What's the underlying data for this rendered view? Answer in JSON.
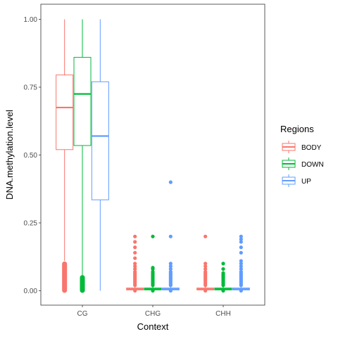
{
  "chart_data": {
    "type": "boxplot",
    "xlabel": "Context",
    "ylabel": "DNA.methylation.level",
    "categories": [
      "CG",
      "CHG",
      "CHH"
    ],
    "ylim": [
      0,
      1
    ],
    "yticks": [
      0.0,
      0.25,
      0.5,
      0.75,
      1.0
    ],
    "ytick_labels": [
      "0.00",
      "0.25",
      "0.50",
      "0.75",
      "1.00"
    ],
    "grid": false,
    "legend": {
      "title": "Regions",
      "placement": "right",
      "entries": [
        "BODY",
        "DOWN",
        "UP"
      ]
    },
    "series": [
      {
        "name": "BODY",
        "color": "#F8766D",
        "boxes": [
          {
            "category": "CG",
            "q1": 0.52,
            "median": 0.675,
            "q3": 0.795,
            "whisker_low": 0.11,
            "whisker_high": 1.0,
            "outliers_band": [
              0.0,
              0.1
            ]
          },
          {
            "category": "CHG",
            "q1": 0.003,
            "median": 0.006,
            "q3": 0.01,
            "whisker_low": 0.0,
            "whisker_high": 0.02,
            "outliers": [
              0.0,
              0.02,
              0.025,
              0.03,
              0.035,
              0.04,
              0.045,
              0.05,
              0.055,
              0.06,
              0.065,
              0.07,
              0.08,
              0.09,
              0.1,
              0.12,
              0.14,
              0.16,
              0.18,
              0.2
            ]
          },
          {
            "category": "CHH",
            "q1": 0.003,
            "median": 0.006,
            "q3": 0.01,
            "whisker_low": 0.0,
            "whisker_high": 0.02,
            "outliers": [
              0.0,
              0.02,
              0.025,
              0.03,
              0.035,
              0.04,
              0.045,
              0.05,
              0.055,
              0.06,
              0.065,
              0.07,
              0.08,
              0.09,
              0.1,
              0.2
            ]
          }
        ]
      },
      {
        "name": "DOWN",
        "color": "#00BA38",
        "boxes": [
          {
            "category": "CG",
            "q1": 0.535,
            "median": 0.725,
            "q3": 0.86,
            "whisker_low": 0.05,
            "whisker_high": 1.0,
            "outliers_band": [
              0.0,
              0.05
            ]
          },
          {
            "category": "CHG",
            "q1": 0.003,
            "median": 0.006,
            "q3": 0.01,
            "whisker_low": 0.0,
            "whisker_high": 0.02,
            "outliers": [
              0.0,
              0.02,
              0.025,
              0.03,
              0.035,
              0.04,
              0.045,
              0.05,
              0.055,
              0.06,
              0.065,
              0.07,
              0.08,
              0.085,
              0.2
            ]
          },
          {
            "category": "CHH",
            "q1": 0.003,
            "median": 0.006,
            "q3": 0.01,
            "whisker_low": 0.0,
            "whisker_high": 0.02,
            "outliers": [
              0.0,
              0.02,
              0.025,
              0.03,
              0.035,
              0.04,
              0.045,
              0.05,
              0.055,
              0.06,
              0.065,
              0.08,
              0.1
            ]
          }
        ]
      },
      {
        "name": "UP",
        "color": "#619CFF",
        "boxes": [
          {
            "category": "CG",
            "q1": 0.335,
            "median": 0.57,
            "q3": 0.77,
            "whisker_low": 0.0,
            "whisker_high": 1.0
          },
          {
            "category": "CHG",
            "q1": 0.003,
            "median": 0.006,
            "q3": 0.01,
            "whisker_low": 0.0,
            "whisker_high": 0.02,
            "outliers": [
              0.0,
              0.02,
              0.025,
              0.03,
              0.035,
              0.04,
              0.045,
              0.05,
              0.055,
              0.06,
              0.065,
              0.07,
              0.08,
              0.09,
              0.1,
              0.2,
              0.4
            ]
          },
          {
            "category": "CHH",
            "q1": 0.003,
            "median": 0.006,
            "q3": 0.01,
            "whisker_low": 0.0,
            "whisker_high": 0.02,
            "outliers": [
              0.0,
              0.02,
              0.025,
              0.03,
              0.035,
              0.04,
              0.045,
              0.05,
              0.055,
              0.06,
              0.065,
              0.07,
              0.08,
              0.09,
              0.1,
              0.11,
              0.14,
              0.16,
              0.18,
              0.19,
              0.2
            ]
          }
        ]
      }
    ]
  }
}
